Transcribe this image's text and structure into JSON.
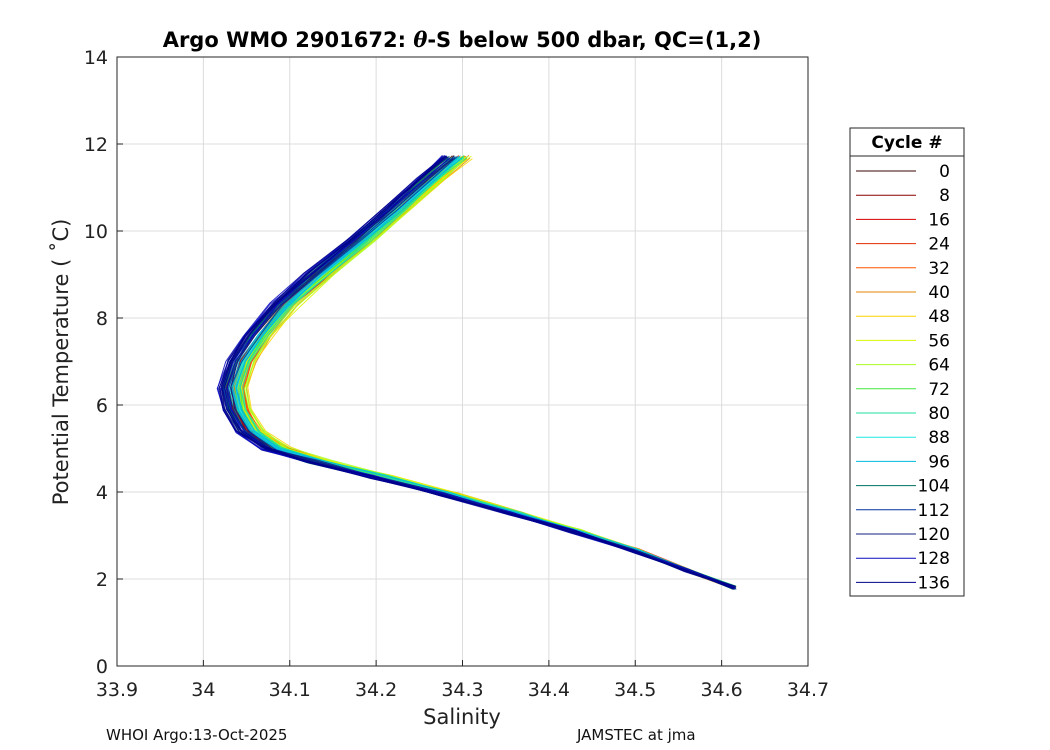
{
  "chart_data": {
    "type": "line",
    "title_main": "Argo WMO 2901672: ",
    "title_theta": "θ",
    "title_rest": "-S below 500 dbar,  QC=(1,2)",
    "xlabel": "Salinity",
    "ylabel": "Potential Temperature ( ˚C)",
    "xlim": [
      33.9,
      34.7
    ],
    "ylim": [
      0,
      14
    ],
    "xticks": [
      "33.9",
      "34",
      "34.1",
      "34.2",
      "34.3",
      "34.4",
      "34.5",
      "34.6",
      "34.7"
    ],
    "yticks": [
      "0",
      "2",
      "4",
      "6",
      "8",
      "10",
      "12",
      "14"
    ],
    "grid": true,
    "legend_title": "Cycle #",
    "legend_placement": "right",
    "series": [
      {
        "name": "0",
        "color": "#3b0000",
        "offset": 0.0
      },
      {
        "name": "8",
        "color": "#8b0000",
        "offset": 0.004
      },
      {
        "name": "16",
        "color": "#d40000",
        "offset": 0.008
      },
      {
        "name": "24",
        "color": "#e52a00",
        "offset": 0.01
      },
      {
        "name": "32",
        "color": "#ff5500",
        "offset": 0.012
      },
      {
        "name": "40",
        "color": "#e08a00",
        "offset": 0.013
      },
      {
        "name": "48",
        "color": "#ffd400",
        "offset": 0.014
      },
      {
        "name": "56",
        "color": "#d9f700",
        "offset": 0.014
      },
      {
        "name": "64",
        "color": "#a8ff1f",
        "offset": 0.012
      },
      {
        "name": "72",
        "color": "#40e840",
        "offset": 0.01
      },
      {
        "name": "80",
        "color": "#1fe0a0",
        "offset": 0.008
      },
      {
        "name": "88",
        "color": "#1fe8e0",
        "offset": 0.005
      },
      {
        "name": "96",
        "color": "#00b8e0",
        "offset": 0.002
      },
      {
        "name": "104",
        "color": "#007060",
        "offset": -0.001
      },
      {
        "name": "112",
        "color": "#0030a0",
        "offset": -0.003
      },
      {
        "name": "120",
        "color": "#102080",
        "offset": -0.005
      },
      {
        "name": "128",
        "color": "#0a0ac0",
        "offset": -0.007
      },
      {
        "name": "136",
        "color": "#00008b",
        "offset": -0.008
      }
    ],
    "profile_base": [
      {
        "s": 34.615,
        "t": 1.8
      },
      {
        "s": 34.56,
        "t": 2.2
      },
      {
        "s": 34.5,
        "t": 2.65
      },
      {
        "s": 34.43,
        "t": 3.1
      },
      {
        "s": 34.36,
        "t": 3.5
      },
      {
        "s": 34.28,
        "t": 3.95
      },
      {
        "s": 34.2,
        "t": 4.35
      },
      {
        "s": 34.13,
        "t": 4.7
      },
      {
        "s": 34.08,
        "t": 5.0
      },
      {
        "s": 34.05,
        "t": 5.4
      },
      {
        "s": 34.035,
        "t": 5.9
      },
      {
        "s": 34.03,
        "t": 6.4
      },
      {
        "s": 34.04,
        "t": 7.0
      },
      {
        "s": 34.06,
        "t": 7.6
      },
      {
        "s": 34.09,
        "t": 8.3
      },
      {
        "s": 34.13,
        "t": 9.0
      },
      {
        "s": 34.18,
        "t": 9.8
      },
      {
        "s": 34.22,
        "t": 10.5
      },
      {
        "s": 34.26,
        "t": 11.2
      },
      {
        "s": 34.29,
        "t": 11.7
      }
    ]
  },
  "footer": {
    "left": "WHOI Argo:13-Oct-2025",
    "right": "JAMSTEC at jma"
  }
}
